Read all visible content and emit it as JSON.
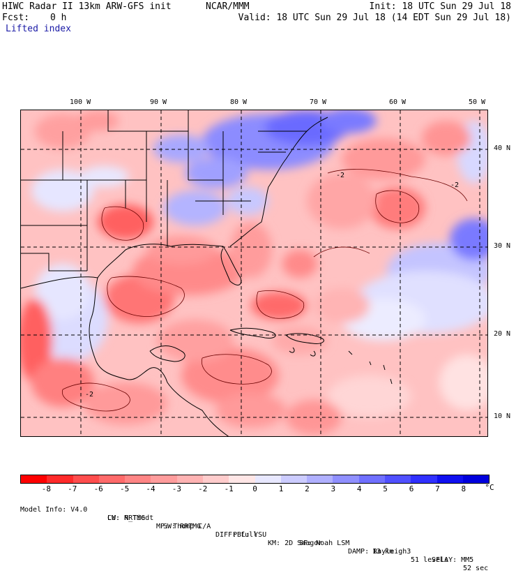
{
  "header": {
    "title": "HIWC Radar II 13km ARW-GFS init",
    "org": "NCAR/MMM",
    "init": "Init: 18 UTC Sun 29 Jul 18",
    "fcst_label": "Fcst:",
    "fcst_value": "0 h",
    "valid": "Valid: 18 UTC Sun 29 Jul 18 (14 EDT Sun 29 Jul 18)",
    "field": "Lifted index"
  },
  "map": {
    "lon_labels": [
      "100 W",
      "90 W",
      "80 W",
      "70 W",
      "60 W",
      "50 W"
    ],
    "lat_labels": [
      "40 N",
      "30 N",
      "20 N",
      "10 N"
    ],
    "contour_label": "-2"
  },
  "colorbar": {
    "ticks": [
      "-8",
      "-7",
      "-6",
      "-5",
      "-4",
      "-3",
      "-2",
      "-1",
      "0",
      "1",
      "2",
      "3",
      "4",
      "5",
      "6",
      "7",
      "8"
    ],
    "unit": "°C",
    "colors": [
      "#ff0000",
      "#ff2a2a",
      "#ff4d4d",
      "#ff6a6a",
      "#ff8585",
      "#ff9c9c",
      "#ffb3b3",
      "#ffcccc",
      "#ffe6e6",
      "#e8e8ff",
      "#ccccff",
      "#b0b0ff",
      "#9090ff",
      "#7070ff",
      "#5050ff",
      "#3030ff",
      "#1010f0",
      "#0000dd"
    ]
  },
  "footer": {
    "line1": [
      "Model Info: V4.0",
      "CU: N_Tiedt",
      "MP: Thomp C/A",
      "PBL: YSU",
      "SF: Noah LSM",
      "13 km",
      "51 levels",
      "52 sec"
    ],
    "line2": [
      "LW: RRTMG",
      "SW: RRTMG",
      "DIFF: full",
      "KM: 2D Smagor",
      "DAMP: Rayleigh3",
      "SFLAY: MM5"
    ]
  }
}
